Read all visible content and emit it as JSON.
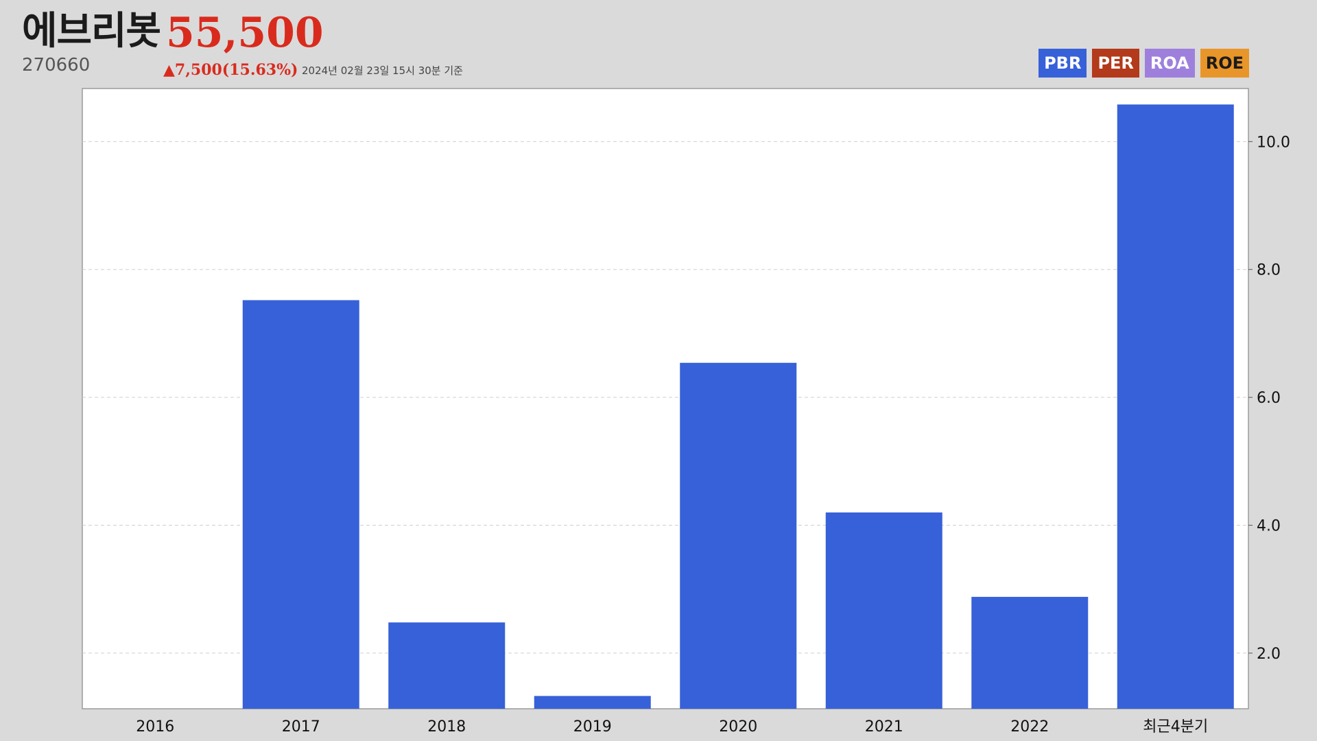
{
  "header": {
    "company_name": "에브리봇",
    "price": "55,500",
    "code": "270660",
    "change": "▲7,500(15.63%)",
    "basis_time": "2024년 02월 23일 15시 30분 기준"
  },
  "legend": [
    {
      "label": "PBR",
      "color": "#3761d8",
      "active": true
    },
    {
      "label": "PER",
      "color": "#b33a1a",
      "active": false
    },
    {
      "label": "ROA",
      "color": "#9e80dc",
      "active": false
    },
    {
      "label": "ROE",
      "color": "#e8962a",
      "active": false
    }
  ],
  "chart_data": {
    "type": "bar",
    "categories": [
      "2016",
      "2017",
      "2018",
      "2019",
      "2020",
      "2021",
      "2022",
      "최근4분기"
    ],
    "series": [
      {
        "name": "PBR",
        "color": "#3761d8",
        "values": [
          null,
          7.52,
          2.48,
          1.33,
          6.54,
          4.2,
          2.88,
          10.58
        ]
      }
    ],
    "ylim": [
      1.13,
      10.83
    ],
    "yticks": [
      "2.0",
      "4.0",
      "6.0",
      "8.0",
      "10.0"
    ],
    "y_axis_side": "right",
    "grid": true,
    "title": "",
    "xlabel": "",
    "ylabel": ""
  }
}
